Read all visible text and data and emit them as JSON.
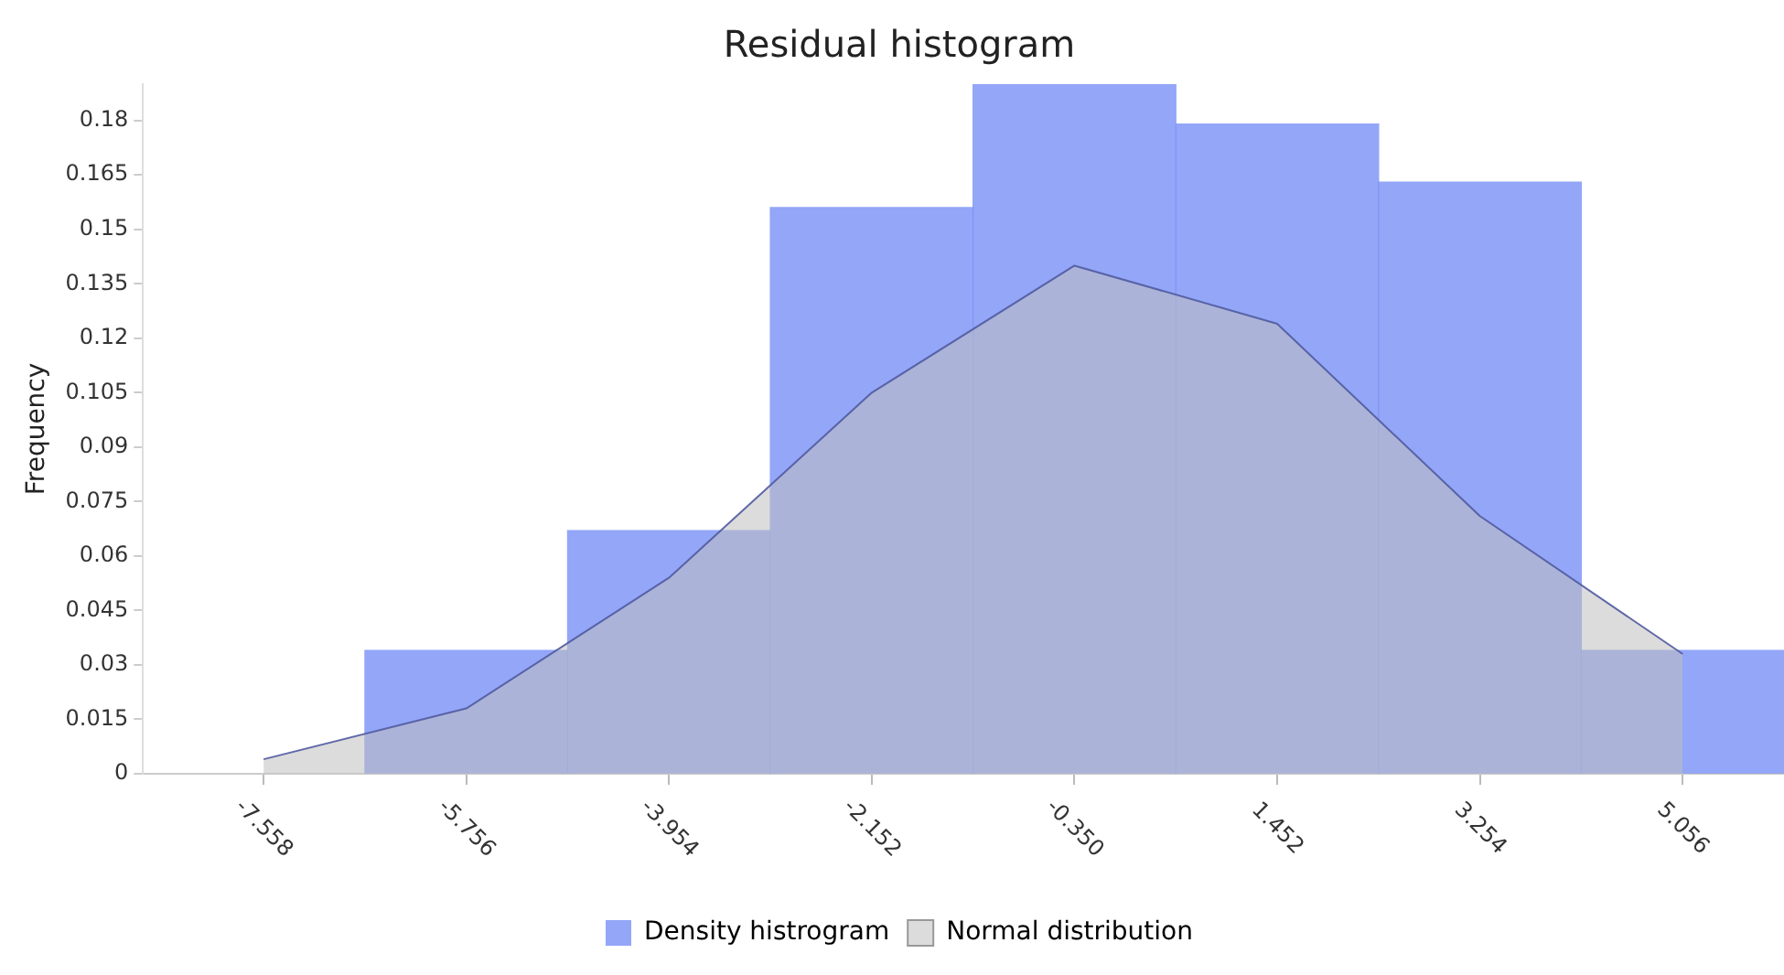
{
  "chart_data": {
    "type": "histogram",
    "title": "Residual histogram",
    "ylabel": "Frequency",
    "bins": [
      -6.657,
      -4.855,
      -3.053,
      -1.251,
      0.551,
      2.353,
      4.155,
      5.957
    ],
    "series": [
      {
        "name": "Density histrogram",
        "color": "#7b93f5",
        "values": [
          0.034,
          0.067,
          0.156,
          0.19,
          0.179,
          0.163,
          0.034
        ]
      },
      {
        "type": "area",
        "name": "Normal distribution",
        "color": "#c0c0c0",
        "x": [
          -7.558,
          -5.756,
          -3.954,
          -2.152,
          -0.35,
          1.452,
          3.254,
          5.056
        ],
        "values": [
          0.004,
          0.018,
          0.054,
          0.105,
          0.14,
          0.124,
          0.071,
          0.033
        ]
      }
    ],
    "xlim": [
      -8.63,
      5.957
    ],
    "xticks": [
      {
        "value": -7.558,
        "label": "-7.558"
      },
      {
        "value": -5.756,
        "label": "-5.756"
      },
      {
        "value": -3.954,
        "label": "-3.954"
      },
      {
        "value": -2.152,
        "label": "-2.152"
      },
      {
        "value": -0.35,
        "label": "-0.350"
      },
      {
        "value": 1.452,
        "label": "1.452"
      },
      {
        "value": 3.254,
        "label": "3.254"
      },
      {
        "value": 5.056,
        "label": "5.056"
      }
    ],
    "ylim": [
      0,
      0.19
    ],
    "yticks": [
      0,
      0.015,
      0.03,
      0.045,
      0.06,
      0.075,
      0.09,
      0.105,
      0.12,
      0.135,
      0.15,
      0.165,
      0.18
    ],
    "grid": false,
    "legend": "bottom"
  }
}
